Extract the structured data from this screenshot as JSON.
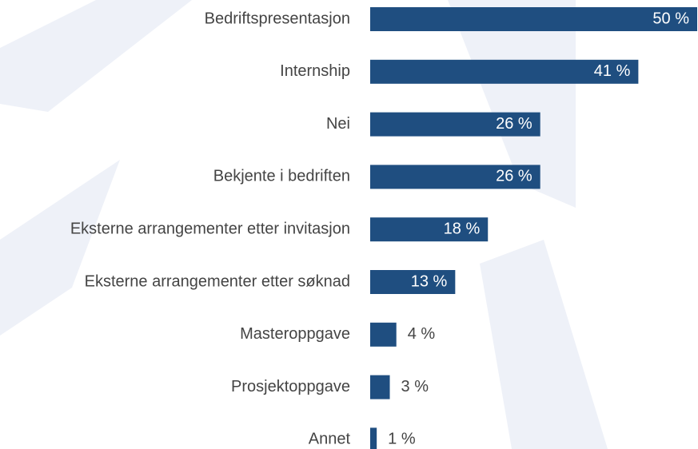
{
  "chart_data": {
    "type": "barh",
    "color": "#1f4e80",
    "categories": [
      "Bedriftspresentasjon",
      "Internship",
      "Nei",
      "Bekjente i bedriften",
      "Eksterne arrangementer etter invitasjon",
      "Eksterne arrangementer etter søknad",
      "Masteroppgave",
      "Prosjektoppgave",
      "Annet"
    ],
    "values": [
      50,
      41,
      26,
      26,
      18,
      13,
      4,
      3,
      1
    ],
    "value_labels": [
      "50 %",
      "41 %",
      "26 %",
      "26 %",
      "18 %",
      "13 %",
      "4 %",
      "3 %",
      "1 %"
    ]
  }
}
